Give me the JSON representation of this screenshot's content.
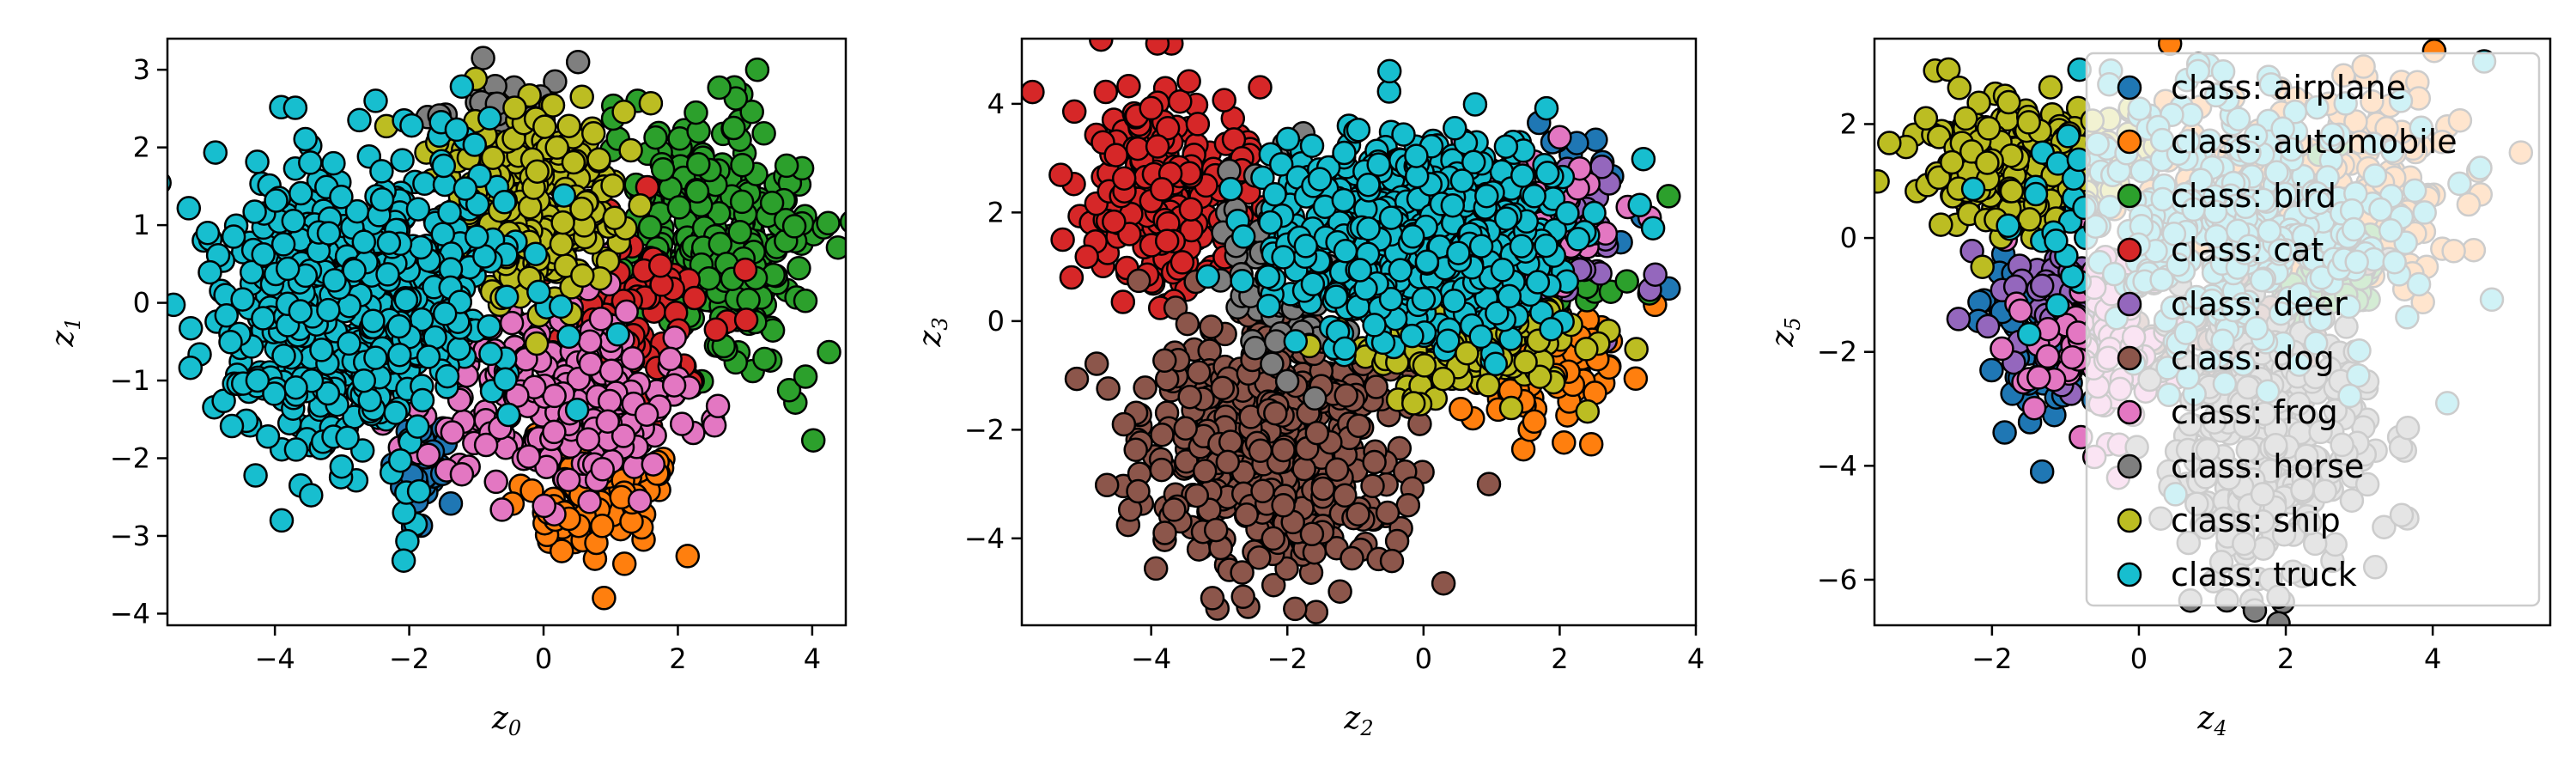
{
  "chart_data": {
    "type": "scatter",
    "legend": {
      "placement": "upper-right of third panel",
      "entries": [
        {
          "label": "class: airplane",
          "color": "#1f77b4"
        },
        {
          "label": "class: automobile",
          "color": "#ff7f0e"
        },
        {
          "label": "class: bird",
          "color": "#2ca02c"
        },
        {
          "label": "class: cat",
          "color": "#d62728"
        },
        {
          "label": "class: deer",
          "color": "#9467bd"
        },
        {
          "label": "class: dog",
          "color": "#8c564b"
        },
        {
          "label": "class: frog",
          "color": "#e377c2"
        },
        {
          "label": "class: horse",
          "color": "#7f7f7f"
        },
        {
          "label": "class: ship",
          "color": "#bcbd22"
        },
        {
          "label": "class: truck",
          "color": "#17becf"
        }
      ]
    },
    "panels": [
      {
        "xlabel": "z",
        "xlabel_sub": "0",
        "ylabel": "z",
        "ylabel_sub": "1",
        "xlim": [
          -5.6,
          4.5
        ],
        "ylim": [
          -4.15,
          3.4
        ],
        "xticks": [
          -4,
          -2,
          0,
          2,
          4
        ],
        "yticks": [
          -4,
          -3,
          -2,
          -1,
          0,
          1,
          2,
          3
        ],
        "grid": false,
        "clusters": [
          {
            "class": "airplane",
            "cx": -1.8,
            "cy": -2.3,
            "sx": 0.3,
            "sy": 0.35,
            "n": 35
          },
          {
            "class": "automobile",
            "cx": 0.7,
            "cy": -2.4,
            "sx": 0.5,
            "sy": 0.45,
            "n": 120
          },
          {
            "class": "frog",
            "cx": 0.2,
            "cy": -1.2,
            "sx": 0.9,
            "sy": 0.6,
            "n": 260
          },
          {
            "class": "cat",
            "cx": 1.4,
            "cy": -0.3,
            "sx": 0.7,
            "sy": 0.7,
            "n": 80
          },
          {
            "class": "bird",
            "cx": 2.6,
            "cy": 0.8,
            "sx": 0.7,
            "sy": 0.85,
            "n": 300
          },
          {
            "class": "horse",
            "cx": -0.6,
            "cy": 2.2,
            "sx": 0.5,
            "sy": 0.45,
            "n": 60
          },
          {
            "class": "ship",
            "cx": -0.3,
            "cy": 1.3,
            "sx": 0.7,
            "sy": 0.7,
            "n": 260
          },
          {
            "class": "truck",
            "cx": -2.7,
            "cy": 0.0,
            "sx": 1.1,
            "sy": 0.95,
            "n": 650
          }
        ],
        "outliers": [
          {
            "class": "truck",
            "x": -3.9,
            "y": -2.8
          },
          {
            "class": "truck",
            "x": -2.5,
            "y": 2.6
          },
          {
            "class": "truck",
            "x": -5.0,
            "y": 0.9
          },
          {
            "class": "automobile",
            "x": 0.9,
            "y": -3.8
          },
          {
            "class": "bird",
            "x": 3.9,
            "y": -0.95
          },
          {
            "class": "bird",
            "x": 1.4,
            "y": 2.6
          },
          {
            "class": "horse",
            "x": -0.9,
            "y": 3.15
          }
        ]
      },
      {
        "xlabel": "z",
        "xlabel_sub": "2",
        "ylabel": "z",
        "ylabel_sub": "3",
        "xlim": [
          -5.9,
          4.0
        ],
        "ylim": [
          -5.6,
          5.2
        ],
        "xticks": [
          -4,
          -2,
          0,
          2,
          4
        ],
        "yticks": [
          -4,
          -2,
          0,
          2,
          4
        ],
        "grid": false,
        "clusters": [
          {
            "class": "cat",
            "cx": -3.7,
            "cy": 2.3,
            "sx": 0.7,
            "sy": 1.0,
            "n": 230
          },
          {
            "class": "dog",
            "cx": -2.2,
            "cy": -2.3,
            "sx": 0.9,
            "sy": 1.2,
            "n": 480
          },
          {
            "class": "horse",
            "cx": -2.0,
            "cy": 1.0,
            "sx": 0.5,
            "sy": 1.0,
            "n": 70
          },
          {
            "class": "automobile",
            "cx": 1.7,
            "cy": -0.8,
            "sx": 0.7,
            "sy": 0.55,
            "n": 100
          },
          {
            "class": "ship",
            "cx": 0.5,
            "cy": -0.5,
            "sx": 0.9,
            "sy": 0.6,
            "n": 120
          },
          {
            "class": "deer",
            "cx": 1.8,
            "cy": 1.5,
            "sx": 0.6,
            "sy": 0.6,
            "n": 70
          },
          {
            "class": "frog",
            "cx": 1.5,
            "cy": 1.8,
            "sx": 0.6,
            "sy": 0.6,
            "n": 60
          },
          {
            "class": "airplane",
            "cx": 2.2,
            "cy": 2.5,
            "sx": 0.5,
            "sy": 0.5,
            "n": 25
          },
          {
            "class": "bird",
            "cx": 2.5,
            "cy": 1.0,
            "sx": 0.3,
            "sy": 0.5,
            "n": 15
          },
          {
            "class": "truck",
            "cx": -0.1,
            "cy": 1.6,
            "sx": 1.1,
            "sy": 0.9,
            "n": 650
          }
        ],
        "outliers": [
          {
            "class": "truck",
            "x": -0.5,
            "y": 4.6
          },
          {
            "class": "cat",
            "x": -5.3,
            "y": 1.5
          },
          {
            "class": "dog",
            "x": -4.4,
            "y": -1.9
          },
          {
            "class": "dog",
            "x": -3.1,
            "y": -5.1
          },
          {
            "class": "dog",
            "x": -3.8,
            "y": -3.9
          },
          {
            "class": "bird",
            "x": 3.6,
            "y": 2.3
          },
          {
            "class": "automobile",
            "x": 3.4,
            "y": 0.3
          },
          {
            "class": "airplane",
            "x": 3.6,
            "y": 0.6
          },
          {
            "class": "frog",
            "x": 3.0,
            "y": 2.1
          }
        ]
      },
      {
        "xlabel": "z",
        "xlabel_sub": "4",
        "ylabel": "z",
        "ylabel_sub": "5",
        "xlim": [
          -3.6,
          5.6
        ],
        "ylim": [
          -6.8,
          3.5
        ],
        "xticks": [
          -2,
          0,
          2,
          4
        ],
        "yticks": [
          -6,
          -4,
          -2,
          0,
          2
        ],
        "grid": false,
        "clusters": [
          {
            "class": "ship",
            "cx": -1.6,
            "cy": 1.3,
            "sx": 0.7,
            "sy": 0.6,
            "n": 260
          },
          {
            "class": "airplane",
            "cx": -1.3,
            "cy": -1.8,
            "sx": 0.4,
            "sy": 0.7,
            "n": 60
          },
          {
            "class": "deer",
            "cx": -1.0,
            "cy": -1.3,
            "sx": 0.5,
            "sy": 0.6,
            "n": 50
          },
          {
            "class": "frog",
            "cx": -0.6,
            "cy": -1.9,
            "sx": 0.5,
            "sy": 0.8,
            "n": 90
          },
          {
            "class": "horse",
            "cx": 1.7,
            "cy": -3.5,
            "sx": 0.7,
            "sy": 1.2,
            "n": 300
          },
          {
            "class": "automobile",
            "cx": 2.6,
            "cy": 0.9,
            "sx": 1.0,
            "sy": 1.0,
            "n": 180
          },
          {
            "class": "dog",
            "cx": 1.3,
            "cy": -1.8,
            "sx": 0.6,
            "sy": 0.6,
            "n": 60
          },
          {
            "class": "bird",
            "cx": 2.5,
            "cy": -0.5,
            "sx": 0.6,
            "sy": 0.6,
            "n": 50
          },
          {
            "class": "truck",
            "cx": 1.2,
            "cy": 0.3,
            "sx": 1.2,
            "sy": 1.2,
            "n": 380
          }
        ],
        "outliers": [
          {
            "class": "automobile",
            "x": 5.2,
            "y": 1.5
          },
          {
            "class": "truck",
            "x": 4.7,
            "y": 3.1
          },
          {
            "class": "truck",
            "x": 4.2,
            "y": -2.9
          },
          {
            "class": "ship",
            "x": -2.9,
            "y": 2.1
          },
          {
            "class": "horse",
            "x": 1.9,
            "y": -6.3
          }
        ]
      }
    ]
  }
}
